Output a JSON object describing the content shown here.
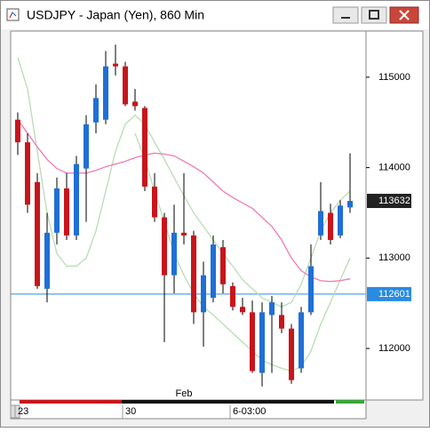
{
  "chart_data": {
    "type": "candlestick",
    "title": "USDJPY - Japan (Yen), 860 Min",
    "categories": [
      "23",
      null,
      null,
      null,
      null,
      null,
      null,
      null,
      null,
      null,
      null,
      "30",
      null,
      null,
      null,
      null,
      null,
      null,
      null,
      null,
      null,
      null,
      "6-03:00",
      null,
      null,
      null,
      null,
      null,
      null,
      null,
      null,
      null,
      null,
      null,
      null
    ],
    "month_labels": [
      {
        "label": "Feb",
        "index": 17
      }
    ],
    "open": [
      114530,
      114280,
      113840,
      112660,
      113280,
      113770,
      113250,
      113990,
      114500,
      114530,
      115150,
      115120,
      114730,
      114660,
      113790,
      113450,
      112810,
      113280,
      113250,
      112400,
      112560,
      113120,
      112690,
      112460,
      112400,
      111730,
      112370,
      112370,
      112220,
      111780,
      112400,
      113250,
      113500,
      113250,
      113560
    ],
    "high": [
      114610,
      114380,
      113940,
      113500,
      113890,
      113940,
      114130,
      114580,
      114920,
      115290,
      115360,
      115170,
      114870,
      114680,
      113940,
      113500,
      113590,
      113940,
      113300,
      112960,
      113250,
      113200,
      112730,
      112560,
      112530,
      112510,
      112580,
      112510,
      112270,
      112460,
      113150,
      113840,
      113600,
      113640,
      114160
    ],
    "low": [
      114140,
      113500,
      112660,
      112510,
      113150,
      113200,
      113200,
      113400,
      114380,
      114480,
      115020,
      114680,
      114630,
      113740,
      113400,
      112070,
      112610,
      113150,
      112270,
      112020,
      112510,
      112610,
      112420,
      112370,
      111730,
      111580,
      111730,
      112170,
      111610,
      111730,
      112370,
      113200,
      113150,
      113220,
      113500
    ],
    "close": [
      114280,
      113590,
      112690,
      113280,
      113770,
      113250,
      114040,
      114480,
      114770,
      115120,
      115120,
      114700,
      114680,
      113790,
      113450,
      112810,
      113280,
      113250,
      112400,
      112810,
      113150,
      112710,
      112460,
      112400,
      111750,
      112400,
      112510,
      112220,
      111650,
      112400,
      112910,
      113520,
      113200,
      113580,
      113632
    ],
    "up_color": "#1f6fd6",
    "down_color": "#c8151b",
    "lines": [
      {
        "color": "#b9dcb4",
        "values": [
          115220,
          114870,
          114180,
          113500,
          113050,
          112910,
          112910,
          113000,
          113300,
          113740,
          114180,
          114480,
          114580,
          114480,
          114280,
          114090,
          113890,
          113690,
          113500,
          113350,
          113200,
          113050,
          112910,
          112760,
          112660,
          112560,
          112510,
          112460,
          112510,
          112710,
          113000,
          113300,
          113500,
          113640,
          113740
        ]
      },
      {
        "color": "#b9dcb4",
        "values": [
          null,
          null,
          null,
          null,
          null,
          null,
          null,
          null,
          null,
          null,
          null,
          null,
          114380,
          114090,
          113740,
          113400,
          113050,
          112810,
          112610,
          112460,
          112370,
          112270,
          112170,
          112070,
          111970,
          111870,
          111820,
          111780,
          111750,
          111800,
          111970,
          112270,
          112510,
          112760,
          113000
        ]
      },
      {
        "color": "#f07ab8",
        "values": [
          114530,
          114380,
          114230,
          114090,
          113990,
          113940,
          113940,
          113940,
          113970,
          114010,
          114040,
          114070,
          114110,
          114140,
          114160,
          114150,
          114130,
          114070,
          114010,
          113940,
          113840,
          113740,
          113670,
          113610,
          113550,
          113450,
          113350,
          113200,
          113000,
          112860,
          112790,
          112750,
          112740,
          112750,
          112770
        ]
      }
    ],
    "hline": 112601,
    "hline_color": "#2a8be0",
    "last_price": 113632,
    "ylim": [
      111430,
      115510
    ],
    "yticks": [
      112000,
      113000,
      114000,
      115000
    ]
  }
}
